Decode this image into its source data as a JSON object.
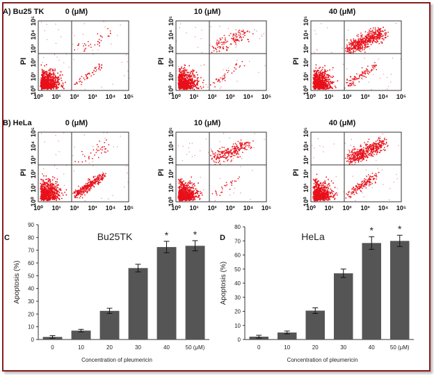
{
  "flow": {
    "x_ticks": [
      "10⁰",
      "10¹",
      "10²",
      "10³",
      "10⁴",
      "10⁵"
    ],
    "y_ticks": [
      "10⁰",
      "10¹",
      "10²",
      "10³",
      "10⁴",
      "10⁵"
    ],
    "y_label": "PI",
    "rows": [
      {
        "label": "A) Bu25 TK",
        "panels": [
          {
            "title": "0 (μM)",
            "early": 0.04,
            "late": 0.03
          },
          {
            "title": "10 (μM)",
            "early": 0.03,
            "late": 0.1
          },
          {
            "title": "40 (μM)",
            "early": 0.08,
            "late": 0.45
          }
        ]
      },
      {
        "label": "B) HeLa",
        "panels": [
          {
            "title": "0 (μM)",
            "early": 0.25,
            "late": 0.03
          },
          {
            "title": "10 (μM)",
            "early": 0.02,
            "late": 0.2
          },
          {
            "title": "40 (μM)",
            "early": 0.12,
            "late": 0.4
          }
        ]
      }
    ]
  },
  "chart_data": [
    {
      "type": "bar",
      "panel_label": "C",
      "title": "Bu25TK",
      "xlabel": "Concentration of pleumericin",
      "ylabel": "Apoptosis (%)",
      "categories": [
        "0",
        "10",
        "20",
        "30",
        "40",
        "50 (μM)"
      ],
      "values": [
        2,
        7,
        22.5,
        56,
        72.5,
        73.5
      ],
      "errors": [
        1,
        1,
        2,
        3,
        4.5,
        4
      ],
      "significance": [
        "",
        "",
        "",
        "",
        "*",
        "*"
      ],
      "ylim": [
        0,
        90
      ],
      "yticks": [
        "0",
        "10",
        "20",
        "30",
        "40",
        "50",
        "60",
        "70",
        "80",
        "90"
      ],
      "color": "#555555"
    },
    {
      "type": "bar",
      "panel_label": "D",
      "title": "HeLa",
      "xlabel": "Concentration of pleumericin",
      "ylabel": "Apoptosis (%)",
      "categories": [
        "0",
        "10",
        "20",
        "30",
        "40",
        "50 (μM)"
      ],
      "values": [
        2,
        5,
        20.5,
        47,
        68.5,
        70
      ],
      "errors": [
        1,
        1,
        2,
        3,
        4.5,
        4
      ],
      "significance": [
        "",
        "",
        "",
        "",
        "*",
        "*"
      ],
      "ylim": [
        0,
        80
      ],
      "yticks": [
        "0",
        "10",
        "20",
        "30",
        "40",
        "50",
        "60",
        "70",
        "80"
      ],
      "color": "#555555"
    }
  ]
}
